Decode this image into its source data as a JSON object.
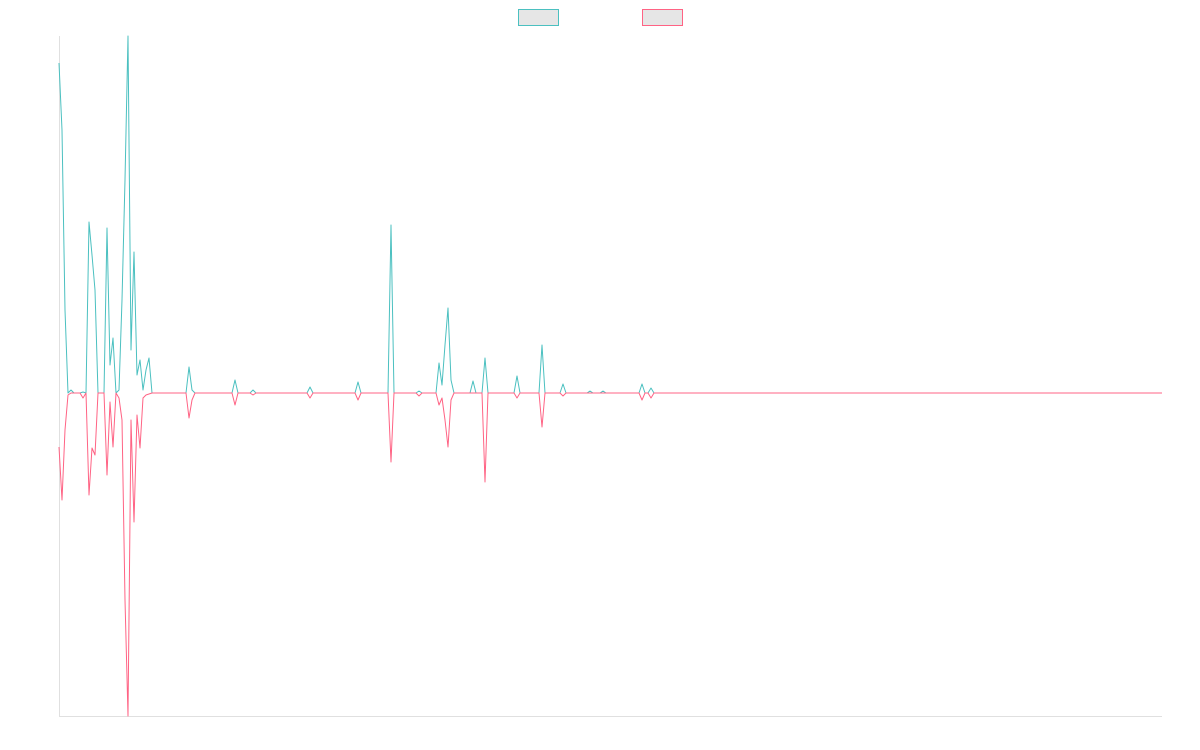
{
  "chart_data": {
    "type": "line",
    "xlim": [
      0,
      1103
    ],
    "ylim": [
      -323,
      357
    ],
    "x": [
      0,
      3,
      6,
      9,
      12,
      15,
      21,
      24,
      27,
      30,
      33,
      36,
      39,
      42,
      45,
      48,
      51,
      54,
      57,
      60,
      63,
      66,
      69,
      72,
      75,
      78,
      81,
      84,
      87,
      90,
      93,
      127,
      130,
      133,
      136,
      173,
      176,
      179,
      191,
      194,
      197,
      248,
      251,
      254,
      296,
      299,
      302,
      329,
      332,
      335,
      357,
      360,
      363,
      377,
      380,
      383,
      386,
      389,
      392,
      395,
      411,
      414,
      417,
      423,
      426,
      429,
      455,
      458,
      461,
      480,
      483,
      486,
      501,
      504,
      507,
      528,
      531,
      534,
      541,
      544,
      547,
      580,
      583,
      586,
      589,
      592,
      595,
      1103
    ],
    "series": [
      {
        "color": "#4bc0c0",
        "values": [
          330,
          263,
          83,
          0,
          3,
          0,
          0,
          1,
          0,
          171,
          138,
          103,
          0,
          0,
          0,
          165,
          28,
          55,
          0,
          3,
          93,
          213,
          357,
          43,
          141,
          18,
          33,
          3,
          23,
          35,
          0,
          0,
          26,
          3,
          0,
          0,
          13,
          0,
          0,
          3,
          0,
          0,
          6,
          0,
          0,
          11,
          0,
          0,
          168,
          0,
          0,
          2,
          0,
          0,
          30,
          8,
          48,
          85,
          13,
          0,
          0,
          12,
          0,
          0,
          35,
          0,
          0,
          17,
          0,
          0,
          48,
          0,
          0,
          9,
          0,
          0,
          2,
          0,
          0,
          2,
          0,
          0,
          9,
          0,
          0,
          5,
          0,
          0
        ]
      },
      {
        "color": "#ff6384",
        "values": [
          -54,
          -107,
          -37,
          -2,
          0,
          0,
          0,
          -5,
          0,
          -102,
          -55,
          -62,
          0,
          0,
          0,
          -82,
          -9,
          -54,
          0,
          -5,
          -27,
          -207,
          -323,
          -27,
          -129,
          -22,
          -55,
          -5,
          -2,
          -1,
          0,
          0,
          -25,
          -7,
          0,
          0,
          -12,
          0,
          0,
          -2,
          0,
          0,
          -5,
          0,
          0,
          -7,
          0,
          0,
          -69,
          0,
          0,
          -3,
          0,
          0,
          -12,
          -5,
          -27,
          -54,
          -7,
          0,
          0,
          0,
          0,
          0,
          -89,
          0,
          0,
          -5,
          0,
          0,
          -34,
          0,
          0,
          -3,
          0,
          0,
          0,
          0,
          0,
          0,
          0,
          0,
          -7,
          0,
          0,
          -5,
          0,
          0
        ]
      }
    ]
  }
}
